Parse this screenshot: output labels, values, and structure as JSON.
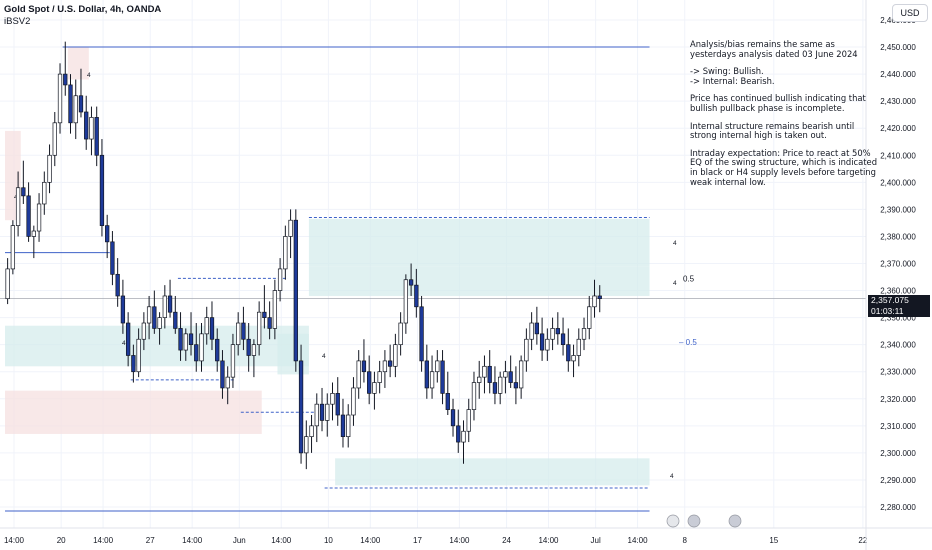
{
  "header": {
    "title": "Gold Spot / U.S. Dollar, 4h, OANDA",
    "indicator": "iBSV2"
  },
  "currency_button": "USD",
  "analysis": [
    "Analysis/bias remains the same as yesterdays analysis dated 03 June 2024",
    "-> Swing:   Bullish.\n-> Internal:  Bearish.",
    "Price has continued bullish indicating that bullish pullback phase is incomplete.",
    "Internal structure remains bearish until strong internal high is taken out.",
    "Intraday expectation: Price to react at 50% EQ of the swing structure, which is indicated in black or H4 supply levels before targeting weak internal low."
  ],
  "current_price": "2,357.075",
  "countdown": "01:03:11",
  "annotations": {
    "eq_black": "0.5",
    "eq_blue": "– 0.5",
    "marker": "4"
  },
  "colors": {
    "bull": "#ffffff",
    "bear": "#1e3a9a",
    "wick": "#131722",
    "demand_zone": "#d5ecec",
    "supply_zone": "#f6e0e0",
    "level_line": "#3f62c8",
    "grid": "#f0f3fa"
  },
  "chart_data": {
    "type": "candlestick",
    "timeframe": "4h",
    "y_ticks": [
      "2,460.000",
      "2,450.000",
      "2,440.000",
      "2,430.000",
      "2,420.000",
      "2,410.000",
      "2,400.000",
      "2,390.000",
      "2,380.000",
      "2,370.000",
      "2,360.000",
      "2,350.000",
      "2,340.000",
      "2,330.000",
      "2,320.000",
      "2,310.000",
      "2,300.000",
      "2,290.000",
      "2,280.000"
    ],
    "ylim": [
      2277,
      2464
    ],
    "x_ticks": [
      {
        "label": "14:00",
        "bar": 0
      },
      {
        "label": "20",
        "bar": 9
      },
      {
        "label": "14:00",
        "bar": 17
      },
      {
        "label": "27",
        "bar": 26
      },
      {
        "label": "14:00",
        "bar": 34
      },
      {
        "label": "Jun",
        "bar": 43
      },
      {
        "label": "14:00",
        "bar": 51
      },
      {
        "label": "10",
        "bar": 60
      },
      {
        "label": "14:00",
        "bar": 68
      },
      {
        "label": "17",
        "bar": 77
      },
      {
        "label": "14:00",
        "bar": 85
      },
      {
        "label": "24",
        "bar": 94
      },
      {
        "label": "14:00",
        "bar": 102
      },
      {
        "label": "Jul",
        "bar": 111
      },
      {
        "label": "14:00",
        "bar": 119
      },
      {
        "label": "8",
        "bar": 128
      },
      {
        "label": "15",
        "bar": 145
      },
      {
        "label": "22",
        "bar": 162
      }
    ],
    "levels": [
      {
        "y": 2450,
        "from_bar": 11,
        "to_bar": 123,
        "style": "solid"
      },
      {
        "y": 2387,
        "from_bar": 58,
        "to_bar": 123,
        "style": "dashed"
      },
      {
        "y": 2364.5,
        "from_bar": 33,
        "to_bar": 54,
        "style": "dashed"
      },
      {
        "y": 2327,
        "from_bar": 24,
        "to_bar": 44,
        "style": "dashed"
      },
      {
        "y": 2315,
        "from_bar": 45,
        "to_bar": 59,
        "style": "dashed"
      },
      {
        "y": 2287,
        "from_bar": 61,
        "to_bar": 123,
        "style": "dashed"
      },
      {
        "y": 2374,
        "from_bar": 0,
        "to_bar": 20,
        "style": "solid"
      },
      {
        "y": 2278.5,
        "from_bar": 0,
        "to_bar": 123,
        "style": "solid"
      }
    ],
    "zones": [
      {
        "type": "supply",
        "from_bar": 12,
        "to_bar": 16,
        "top": 2450,
        "bottom": 2438
      },
      {
        "type": "supply",
        "from_bar": 0,
        "to_bar": 3,
        "top": 2419,
        "bottom": 2386
      },
      {
        "type": "demand",
        "from_bar": 0,
        "to_bar": 58,
        "top": 2347,
        "bottom": 2332
      },
      {
        "type": "supply",
        "from_bar": 0,
        "to_bar": 49,
        "top": 2323,
        "bottom": 2307
      },
      {
        "type": "demand",
        "from_bar": 58,
        "to_bar": 123,
        "top": 2386.5,
        "bottom": 2369
      },
      {
        "type": "demand",
        "from_bar": 58,
        "to_bar": 123,
        "top": 2369,
        "bottom": 2358
      },
      {
        "type": "demand",
        "from_bar": 52,
        "to_bar": 58,
        "top": 2344,
        "bottom": 2329
      },
      {
        "type": "demand",
        "from_bar": 63,
        "to_bar": 123,
        "top": 2298,
        "bottom": 2288
      }
    ],
    "candles": [
      [
        2357,
        2372,
        2355,
        2368
      ],
      [
        2368,
        2386,
        2366,
        2384
      ],
      [
        2384,
        2404,
        2380,
        2398
      ],
      [
        2398,
        2408,
        2392,
        2395
      ],
      [
        2395,
        2400,
        2378,
        2380
      ],
      [
        2380,
        2384,
        2372,
        2382
      ],
      [
        2382,
        2396,
        2378,
        2392
      ],
      [
        2392,
        2404,
        2388,
        2400
      ],
      [
        2400,
        2414,
        2396,
        2410
      ],
      [
        2410,
        2426,
        2406,
        2422
      ],
      [
        2422,
        2444,
        2418,
        2440
      ],
      [
        2440,
        2452,
        2432,
        2436
      ],
      [
        2436,
        2440,
        2418,
        2422
      ],
      [
        2422,
        2438,
        2416,
        2432
      ],
      [
        2432,
        2442,
        2424,
        2426
      ],
      [
        2426,
        2432,
        2412,
        2416
      ],
      [
        2416,
        2428,
        2410,
        2424
      ],
      [
        2424,
        2428,
        2406,
        2410
      ],
      [
        2410,
        2416,
        2380,
        2384
      ],
      [
        2384,
        2388,
        2372,
        2378
      ],
      [
        2378,
        2382,
        2362,
        2366
      ],
      [
        2366,
        2372,
        2354,
        2358
      ],
      [
        2358,
        2364,
        2344,
        2348
      ],
      [
        2348,
        2352,
        2332,
        2336
      ],
      [
        2336,
        2340,
        2326,
        2330
      ],
      [
        2330,
        2346,
        2328,
        2342
      ],
      [
        2342,
        2352,
        2338,
        2348
      ],
      [
        2348,
        2358,
        2342,
        2354
      ],
      [
        2354,
        2360,
        2344,
        2346
      ],
      [
        2346,
        2352,
        2340,
        2350
      ],
      [
        2350,
        2362,
        2346,
        2358
      ],
      [
        2358,
        2364,
        2350,
        2352
      ],
      [
        2352,
        2358,
        2344,
        2346
      ],
      [
        2346,
        2352,
        2334,
        2338
      ],
      [
        2338,
        2346,
        2334,
        2344
      ],
      [
        2344,
        2352,
        2336,
        2340
      ],
      [
        2340,
        2348,
        2330,
        2334
      ],
      [
        2334,
        2348,
        2330,
        2344
      ],
      [
        2344,
        2354,
        2340,
        2350
      ],
      [
        2350,
        2356,
        2338,
        2342
      ],
      [
        2342,
        2346,
        2330,
        2334
      ],
      [
        2334,
        2338,
        2320,
        2324
      ],
      [
        2324,
        2332,
        2318,
        2328
      ],
      [
        2328,
        2344,
        2324,
        2340
      ],
      [
        2340,
        2352,
        2336,
        2348
      ],
      [
        2348,
        2354,
        2338,
        2342
      ],
      [
        2342,
        2348,
        2330,
        2336
      ],
      [
        2336,
        2342,
        2328,
        2340
      ],
      [
        2340,
        2356,
        2336,
        2352
      ],
      [
        2352,
        2362,
        2346,
        2350
      ],
      [
        2350,
        2356,
        2342,
        2346
      ],
      [
        2346,
        2364,
        2342,
        2360
      ],
      [
        2360,
        2372,
        2356,
        2368
      ],
      [
        2368,
        2384,
        2364,
        2380
      ],
      [
        2380,
        2390,
        2372,
        2386
      ],
      [
        2386,
        2390,
        2330,
        2334
      ],
      [
        2334,
        2340,
        2296,
        2300
      ],
      [
        2300,
        2312,
        2294,
        2306
      ],
      [
        2306,
        2314,
        2300,
        2310
      ],
      [
        2310,
        2322,
        2304,
        2318
      ],
      [
        2318,
        2324,
        2308,
        2312
      ],
      [
        2312,
        2322,
        2306,
        2318
      ],
      [
        2318,
        2326,
        2312,
        2322
      ],
      [
        2322,
        2328,
        2310,
        2314
      ],
      [
        2314,
        2320,
        2302,
        2306
      ],
      [
        2306,
        2318,
        2302,
        2314
      ],
      [
        2314,
        2328,
        2310,
        2324
      ],
      [
        2324,
        2338,
        2320,
        2334
      ],
      [
        2334,
        2342,
        2326,
        2330
      ],
      [
        2330,
        2336,
        2318,
        2322
      ],
      [
        2322,
        2330,
        2316,
        2326
      ],
      [
        2326,
        2334,
        2322,
        2330
      ],
      [
        2330,
        2338,
        2324,
        2334
      ],
      [
        2334,
        2340,
        2328,
        2332
      ],
      [
        2332,
        2344,
        2328,
        2340
      ],
      [
        2340,
        2352,
        2336,
        2348
      ],
      [
        2348,
        2366,
        2344,
        2364
      ],
      [
        2364,
        2370,
        2358,
        2362
      ],
      [
        2362,
        2368,
        2350,
        2354
      ],
      [
        2354,
        2358,
        2330,
        2334
      ],
      [
        2334,
        2340,
        2320,
        2324
      ],
      [
        2324,
        2336,
        2320,
        2330
      ],
      [
        2330,
        2338,
        2326,
        2334
      ],
      [
        2334,
        2338,
        2318,
        2322
      ],
      [
        2322,
        2330,
        2314,
        2316
      ],
      [
        2316,
        2320,
        2306,
        2310
      ],
      [
        2310,
        2316,
        2300,
        2304
      ],
      [
        2304,
        2312,
        2296,
        2308
      ],
      [
        2308,
        2320,
        2304,
        2316
      ],
      [
        2316,
        2330,
        2312,
        2326
      ],
      [
        2326,
        2334,
        2320,
        2328
      ],
      [
        2328,
        2336,
        2322,
        2332
      ],
      [
        2332,
        2338,
        2322,
        2326
      ],
      [
        2326,
        2332,
        2318,
        2322
      ],
      [
        2322,
        2330,
        2318,
        2328
      ],
      [
        2328,
        2334,
        2322,
        2330
      ],
      [
        2330,
        2336,
        2324,
        2326
      ],
      [
        2326,
        2332,
        2318,
        2324
      ],
      [
        2324,
        2336,
        2320,
        2334
      ],
      [
        2334,
        2346,
        2330,
        2342
      ],
      [
        2342,
        2352,
        2338,
        2348
      ],
      [
        2348,
        2354,
        2340,
        2344
      ],
      [
        2344,
        2350,
        2334,
        2338
      ],
      [
        2338,
        2346,
        2334,
        2342
      ],
      [
        2342,
        2350,
        2338,
        2346
      ],
      [
        2346,
        2352,
        2340,
        2344
      ],
      [
        2344,
        2350,
        2336,
        2340
      ],
      [
        2340,
        2346,
        2330,
        2334
      ],
      [
        2334,
        2340,
        2328,
        2336
      ],
      [
        2336,
        2346,
        2332,
        2342
      ],
      [
        2342,
        2350,
        2338,
        2346
      ],
      [
        2346,
        2358,
        2342,
        2354
      ],
      [
        2354,
        2364,
        2350,
        2358
      ],
      [
        2358,
        2362,
        2352,
        2357
      ]
    ]
  }
}
